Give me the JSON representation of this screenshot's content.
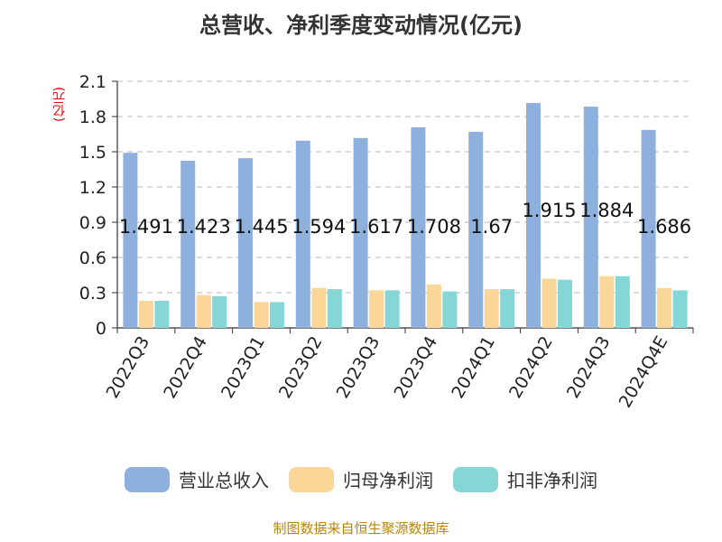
{
  "chart_data": {
    "type": "bar",
    "title": "总营收、净利季度变动情况(亿元)",
    "ylabel": "(亿元)",
    "categories": [
      "2022Q3",
      "2022Q4",
      "2023Q1",
      "2023Q2",
      "2023Q3",
      "2023Q4",
      "2024Q1",
      "2024Q2",
      "2024Q3",
      "2024Q4E"
    ],
    "series": [
      {
        "name": "营业总收入",
        "color": "#8eb0dc",
        "values": [
          1.491,
          1.423,
          1.445,
          1.594,
          1.617,
          1.708,
          1.67,
          1.915,
          1.884,
          1.686
        ],
        "labels": [
          "1.491",
          "1.423",
          "1.445",
          "1.594",
          "1.617",
          "1.708",
          "1.67",
          "1.915",
          "1.884",
          "1.686"
        ]
      },
      {
        "name": "归母净利润",
        "color": "#fbd699",
        "values": [
          0.23,
          0.28,
          0.22,
          0.34,
          0.32,
          0.37,
          0.33,
          0.42,
          0.44,
          0.34
        ]
      },
      {
        "name": "扣非净利润",
        "color": "#85d6d6",
        "values": [
          0.23,
          0.27,
          0.22,
          0.33,
          0.32,
          0.31,
          0.33,
          0.41,
          0.44,
          0.32
        ]
      }
    ],
    "ylim": [
      0,
      2.1
    ],
    "yticks": [
      "0",
      "0.3",
      "0.6",
      "0.9",
      "1.2",
      "1.5",
      "1.8",
      "2.1"
    ],
    "grid": true,
    "legend_position": "bottom"
  },
  "source": "制图数据来自恒生聚源数据库"
}
